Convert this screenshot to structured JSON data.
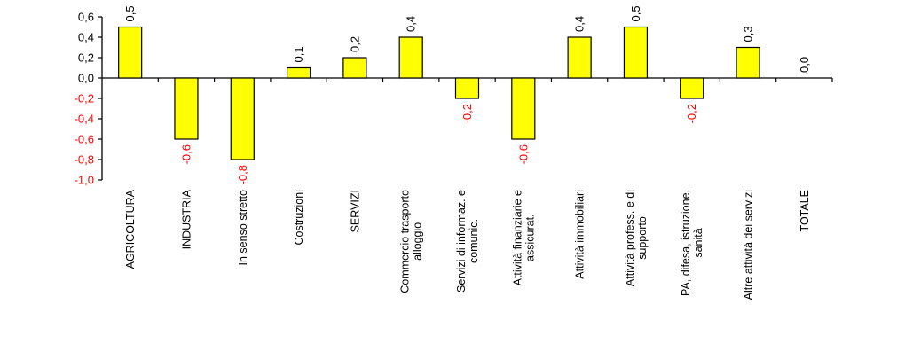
{
  "chart_data": {
    "type": "bar",
    "title": "",
    "xlabel": "",
    "ylabel": "",
    "ylim": [
      -1.0,
      0.6
    ],
    "yticks": [
      "0,6",
      "0,4",
      "0,2",
      "0,0",
      "-0,2",
      "-0,4",
      "-0,6",
      "-0,8",
      "-1,0"
    ],
    "ytick_values": [
      0.6,
      0.4,
      0.2,
      0.0,
      -0.2,
      -0.4,
      -0.6,
      -0.8,
      -1.0
    ],
    "grid": false,
    "categories": [
      [
        "AGRICOLTURA"
      ],
      [
        "INDUSTRIA"
      ],
      [
        "In senso stretto"
      ],
      [
        "Costruzioni"
      ],
      [
        "SERVIZI"
      ],
      [
        "Commercio trasporto",
        "alloggio"
      ],
      [
        "Servizi di informaz. e",
        "comunic."
      ],
      [
        "Attività finanziarie e",
        "assicurat."
      ],
      [
        "Attività immobiliari"
      ],
      [
        "Attività profess. e di",
        "supporto"
      ],
      [
        "PA, difesa, istruzione,",
        "sanità"
      ],
      [
        "Altre attività  dei servizi"
      ],
      [
        "TOTALE"
      ]
    ],
    "values": [
      0.5,
      -0.6,
      -0.8,
      0.1,
      0.2,
      0.4,
      -0.2,
      -0.6,
      0.4,
      0.5,
      -0.2,
      0.3,
      0.0
    ],
    "data_labels": [
      "0,5",
      "-0,6",
      "-0,8",
      "0,1",
      "0,2",
      "0,4",
      "-0,2",
      "-0,6",
      "0,4",
      "0,5",
      "-0,2",
      "0,3",
      "0,0"
    ],
    "colors": {
      "bar_fill": "#ffff00",
      "bar_stroke": "#000000",
      "positive_label": "#000000",
      "negative_label": "#ff0000",
      "axis": "#000000"
    }
  }
}
